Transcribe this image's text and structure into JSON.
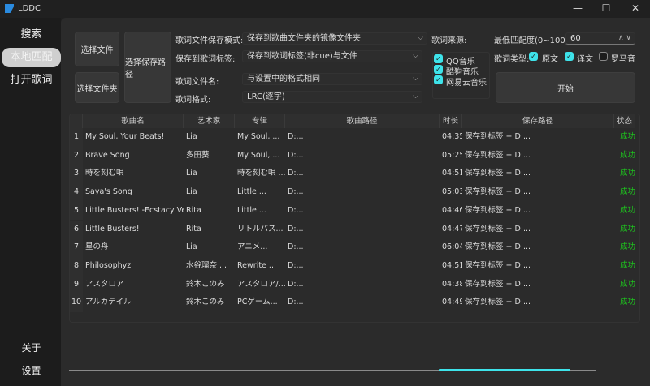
{
  "window": {
    "title": "LDDC",
    "minimize": "—",
    "maximize": "☐",
    "close": "✕"
  },
  "sidebar": {
    "items": [
      {
        "label": "搜索"
      },
      {
        "label": "本地匹配",
        "active": true
      },
      {
        "label": "打开歌词"
      }
    ],
    "bottom": [
      {
        "label": "关于"
      },
      {
        "label": "设置"
      }
    ]
  },
  "controls": {
    "select_file": "选择文件",
    "select_folder": "选择文件夹",
    "select_save_path": "选择保存路径",
    "save_mode_label": "歌词文件保存模式:",
    "save_mode_value": "保存到歌曲文件夹的镜像文件夹",
    "save_tag_label": "保存到歌词标签:",
    "save_tag_value": "保存到歌词标签(非cue)与文件",
    "filename_label": "歌词文件名:",
    "filename_value": "与设置中的格式相同",
    "format_label": "歌词格式:",
    "format_value": "LRC(逐字)",
    "source_label": "歌词来源:",
    "sources": [
      {
        "label": "QQ音乐",
        "checked": true
      },
      {
        "label": "酷狗音乐",
        "checked": true
      },
      {
        "label": "网易云音乐",
        "checked": true
      }
    ],
    "min_score_label": "最低匹配度(0~100):",
    "min_score_value": "60",
    "lyric_type_label": "歌词类型:",
    "lyric_types": [
      {
        "label": "原文",
        "checked": true
      },
      {
        "label": "译文",
        "checked": true
      },
      {
        "label": "罗马音",
        "checked": false
      }
    ],
    "start": "开始"
  },
  "table": {
    "headers": [
      "歌曲名",
      "艺术家",
      "专辑",
      "歌曲路径",
      "时长",
      "保存路径",
      "状态"
    ],
    "rows": [
      [
        "1",
        "My Soul, Your Beats!",
        "Lia",
        "My Soul, ...",
        "D:...",
        "04:35",
        "保存到标签 + D:...",
        "成功"
      ],
      [
        "2",
        "Brave Song",
        "多田葵",
        "My Soul, ...",
        "D:...",
        "05:25",
        "保存到标签 + D:...",
        "成功"
      ],
      [
        "3",
        "時を刻む唄",
        "Lia",
        "時を刻む唄 ...",
        "D:...",
        "04:51",
        "保存到标签 + D:...",
        "成功"
      ],
      [
        "4",
        "Saya's Song",
        "Lia",
        "Little ...",
        "D:...",
        "05:03",
        "保存到标签 + D:...",
        "成功"
      ],
      [
        "5",
        "Little Busters! -Ecstacy Ver.-",
        "Rita",
        "Little ...",
        "D:...",
        "04:46",
        "保存到标签 + D:...",
        "成功"
      ],
      [
        "6",
        "Little Busters!",
        "Rita",
        "リトルバス...",
        "D:...",
        "04:47",
        "保存到标签 + D:...",
        "成功"
      ],
      [
        "7",
        "星の舟",
        "Lia",
        "アニメ...",
        "D:...",
        "06:04",
        "保存到标签 + D:...",
        "成功"
      ],
      [
        "8",
        "Philosophyz",
        "水谷瑠奈 ...",
        "Rewrite ...",
        "D:...",
        "04:51",
        "保存到标签 + D:...",
        "成功"
      ],
      [
        "9",
        "アスタロア",
        "鈴木このみ",
        "アスタロア/...",
        "D:...",
        "04:38",
        "保存到标签 + D:...",
        "成功"
      ],
      [
        "10",
        "アルカテイル",
        "鈴木このみ",
        "PCゲーム...",
        "D:...",
        "04:49",
        "保存到标签 + D:...",
        "成功"
      ]
    ]
  },
  "colors": {
    "accent": "#3ee3ea",
    "success": "#1ec31e"
  }
}
